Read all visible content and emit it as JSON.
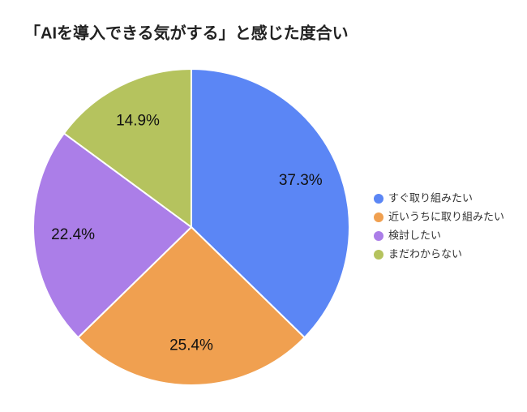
{
  "chart_data": {
    "type": "pie",
    "title": "「AIを導入できる気がする」と感じた度合い",
    "categories": [
      "すぐ取り組みたい",
      "近いうちに取り組みたい",
      "検討したい",
      "まだわからない"
    ],
    "values": [
      37.3,
      25.4,
      22.4,
      14.9
    ],
    "value_labels": [
      "37.3%",
      "25.4%",
      "22.4%",
      "14.9%"
    ],
    "colors": [
      "#5b86f5",
      "#f0a050",
      "#ab7ee8",
      "#b5c35e"
    ],
    "legend": "right"
  }
}
